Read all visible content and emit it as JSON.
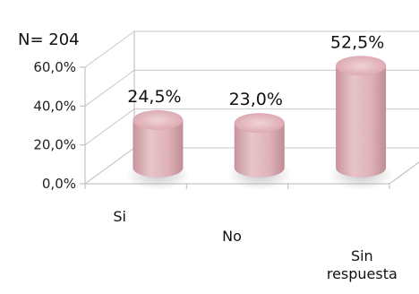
{
  "n_label": "N= 204",
  "chart_data": {
    "type": "bar",
    "style": "3d-cylinder",
    "categories": [
      "Si",
      "No",
      [
        "Sin",
        "respuesta"
      ]
    ],
    "values": [
      24.5,
      23.0,
      52.5
    ],
    "data_labels": [
      "24,5%",
      "23,0%",
      "52,5%"
    ],
    "y_ticks": [
      "0,0%",
      "20,0%",
      "40,0%",
      "60,0%"
    ],
    "ylim": [
      0,
      60
    ],
    "title": "",
    "xlabel": "",
    "ylabel": "",
    "grid": true,
    "legend": "none",
    "bar_color": "#e3aeb6"
  }
}
